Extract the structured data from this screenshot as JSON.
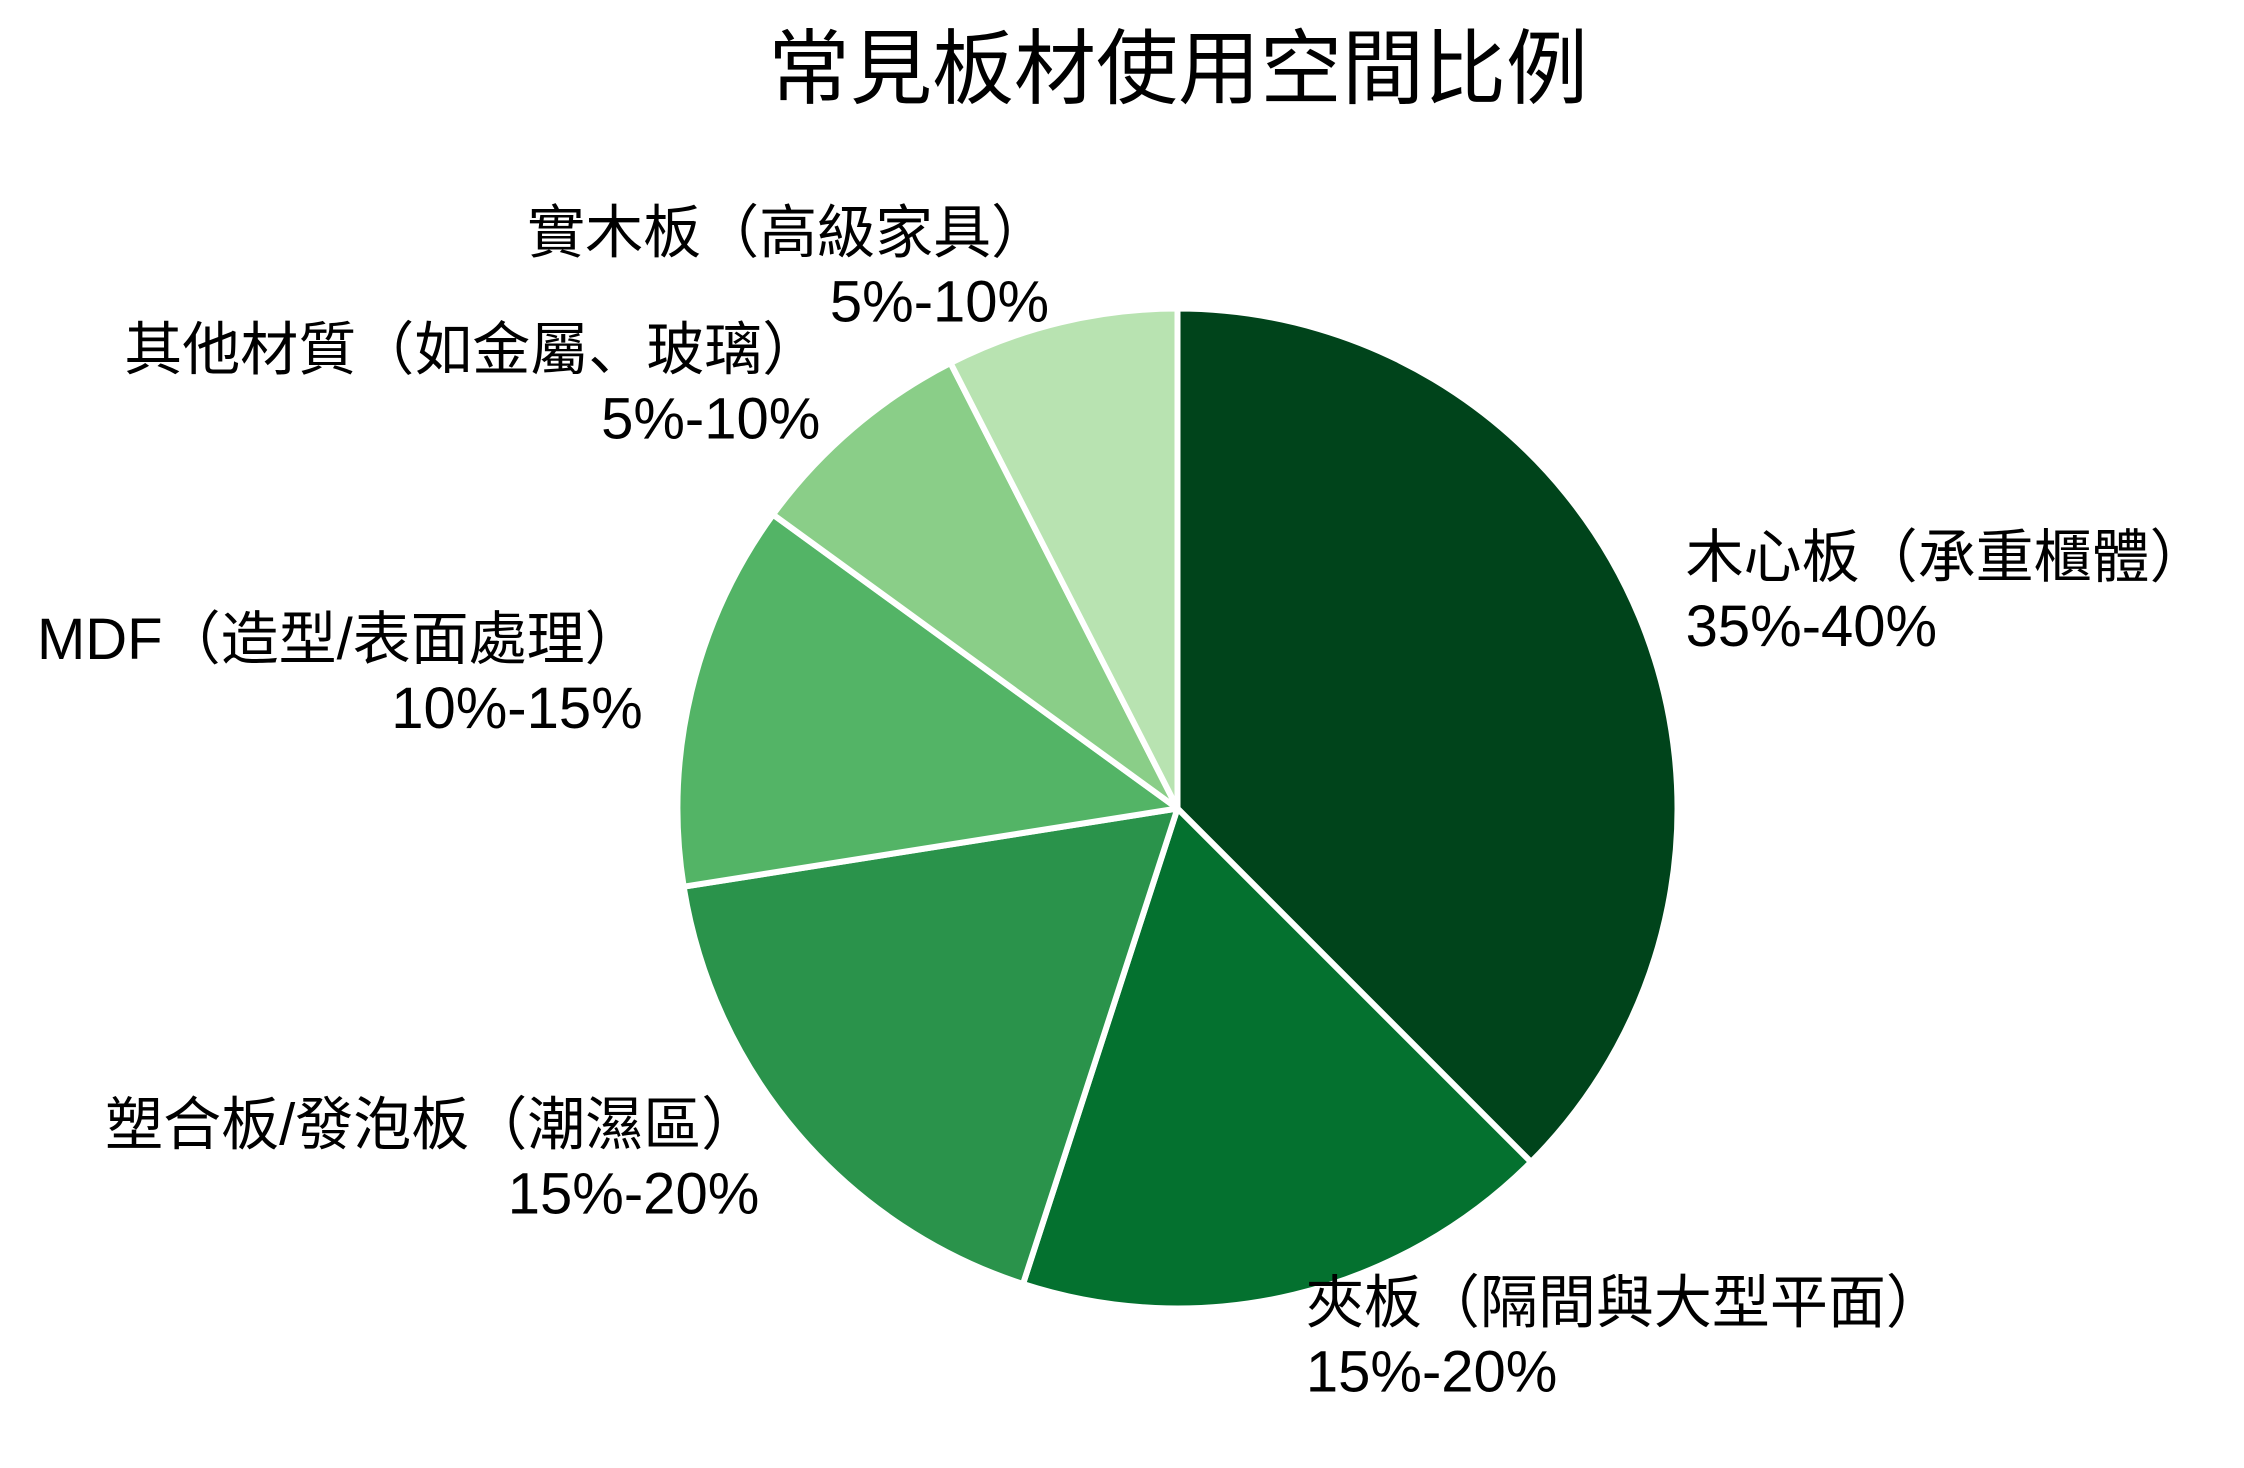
{
  "chart_data": {
    "type": "pie",
    "title": "常見板材使用空間比例",
    "categories": [
      "木心板（承重櫃體）",
      "夾板（隔間與大型平面）",
      "塑合板/發泡板（潮濕區）",
      "MDF（造型/表面處理）",
      "其他材質（如金屬、玻璃）",
      "實木板（高級家具）"
    ],
    "range_labels": [
      "35%-40%",
      "15%-20%",
      "15%-20%",
      "10%-15%",
      "5%-10%",
      "5%-10%"
    ],
    "values": [
      37.5,
      17.5,
      17.5,
      12.5,
      7.5,
      7.5
    ],
    "colors": [
      "#00441b",
      "#04712f",
      "#2a934b",
      "#53b466",
      "#8ace88",
      "#b8e3b1"
    ],
    "edge_color": "#ffffff",
    "start_angle": 90,
    "direction": "clockwise",
    "legend": null,
    "xlabel": "",
    "ylabel": ""
  }
}
